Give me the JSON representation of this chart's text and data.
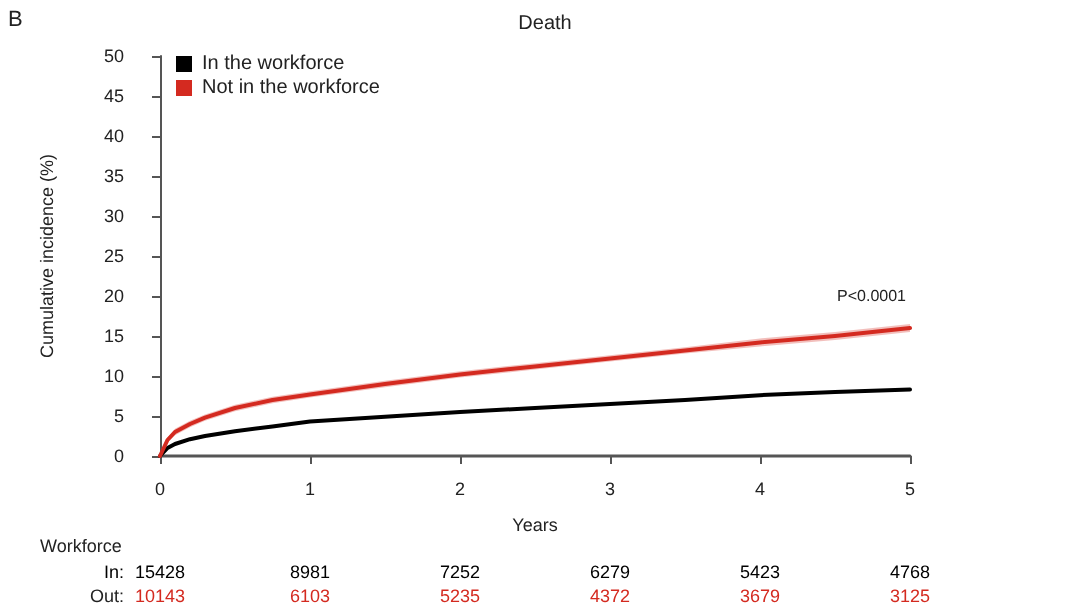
{
  "chart_data": {
    "type": "line",
    "title": "Death",
    "xlabel": "Years",
    "ylabel": "Cumulative incidence (%)",
    "xlim": [
      0,
      5
    ],
    "xticks": [
      0,
      1,
      2,
      3,
      4,
      5
    ],
    "ylim": [
      0,
      50
    ],
    "yticks": [
      0,
      5,
      10,
      15,
      20,
      25,
      30,
      35,
      40,
      45,
      50
    ],
    "grid": false,
    "legend": "top left",
    "marker": "none",
    "line_style": "solid",
    "series": [
      {
        "name": "In the workforce",
        "color": "#000000",
        "x": [
          0,
          0.05,
          0.1,
          0.2,
          0.3,
          0.5,
          0.75,
          1,
          1.5,
          2,
          2.5,
          3,
          3.5,
          4,
          4.5,
          5
        ],
        "values": [
          0,
          1,
          1.5,
          2.1,
          2.5,
          3.1,
          3.7,
          4.3,
          4.9,
          5.5,
          6,
          6.5,
          7,
          7.6,
          8,
          8.3
        ]
      },
      {
        "name": "Not in the workforce",
        "color": "#d42a20",
        "x": [
          0,
          0.05,
          0.1,
          0.2,
          0.3,
          0.5,
          0.75,
          1,
          1.5,
          2,
          2.5,
          3,
          3.5,
          4,
          4.5,
          5
        ],
        "values": [
          0,
          2,
          3,
          4,
          4.8,
          6,
          7,
          7.7,
          9,
          10.2,
          11.2,
          12.2,
          13.2,
          14.2,
          15,
          16
        ],
        "lower": [
          0,
          1.7,
          2.6,
          3.6,
          4.4,
          5.6,
          6.6,
          7.3,
          8.6,
          9.8,
          10.8,
          11.8,
          12.8,
          13.7,
          14.5,
          15.5
        ],
        "upper": [
          0,
          2.3,
          3.4,
          4.4,
          5.2,
          6.4,
          7.4,
          8.1,
          9.4,
          10.6,
          11.6,
          12.6,
          13.6,
          14.7,
          15.5,
          16.5
        ]
      }
    ],
    "annotations": [
      "B",
      "P<0.0001",
      "Workforce",
      "In:",
      "15428",
      "8981",
      "7252",
      "6279",
      "5423",
      "4768",
      "Out:",
      "10143",
      "6103",
      "5235",
      "4372",
      "3679",
      "3125"
    ]
  }
}
